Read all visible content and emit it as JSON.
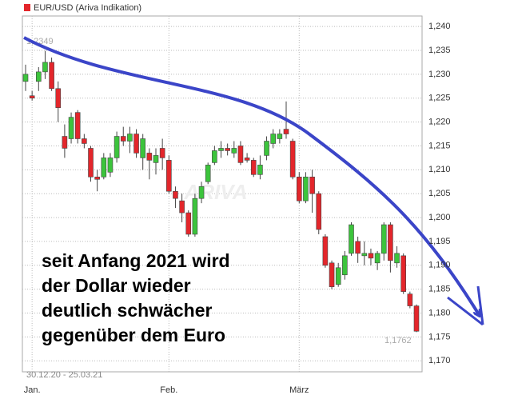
{
  "chart_data": {
    "type": "candlestick",
    "title": "EUR/USD (Ariva Indikation)",
    "range_label": "30.12.20 - 25.03.21",
    "high_label": "1,2349",
    "last_label": "1,1762",
    "watermark": "ARIVA",
    "annotation_lines": [
      "seit Anfang 2021 wird",
      "der Dollar wieder",
      "deutlich schwächer",
      "gegenüber dem Euro"
    ],
    "categories": [
      null,
      "Jan.",
      null,
      null,
      null,
      null,
      null,
      null,
      null,
      null,
      null,
      null,
      null,
      null,
      null,
      null,
      null,
      null,
      null,
      null,
      null,
      null,
      "Feb.",
      null,
      null,
      null,
      null,
      null,
      null,
      null,
      null,
      null,
      null,
      null,
      null,
      null,
      null,
      null,
      null,
      null,
      null,
      null,
      "März",
      null,
      null,
      null,
      null,
      null,
      null,
      null,
      null,
      null,
      null,
      null,
      null,
      null,
      null,
      null,
      null,
      null,
      null
    ],
    "series": [
      {
        "name": "EUR/USD (Ariva Indikation)",
        "color": "#e3262b",
        "up_color": "#3cc43c",
        "open": [
          1.2285,
          1.2255,
          1.2285,
          1.2305,
          1.2325,
          1.227,
          1.217,
          1.2165,
          1.222,
          1.2165,
          1.2145,
          1.2085,
          1.2085,
          1.2095,
          1.2125,
          1.217,
          1.216,
          1.2175,
          1.2125,
          1.2135,
          1.2115,
          1.2145,
          1.212,
          1.2055,
          1.2035,
          1.201,
          1.1965,
          1.204,
          1.2075,
          1.2115,
          1.214,
          1.2145,
          1.2135,
          1.215,
          1.2125,
          1.212,
          1.209,
          1.213,
          1.2155,
          1.2165,
          1.2185,
          1.216,
          1.2085,
          1.2035,
          1.2085,
          1.205,
          1.196,
          1.1905,
          1.186,
          1.188,
          1.1925,
          1.195,
          1.192,
          1.1925,
          1.1905,
          1.1925,
          1.1985,
          1.1905,
          1.192,
          1.184,
          1.1815
        ],
        "high": [
          1.232,
          1.2265,
          1.2315,
          1.2349,
          1.2335,
          1.2285,
          1.2195,
          1.222,
          1.2225,
          1.2175,
          1.215,
          1.21,
          1.2135,
          1.2135,
          1.218,
          1.219,
          1.219,
          1.2185,
          1.2175,
          1.2145,
          1.2145,
          1.2165,
          1.213,
          1.2065,
          1.205,
          1.2015,
          1.205,
          1.2075,
          1.2115,
          1.215,
          1.216,
          1.2155,
          1.216,
          1.216,
          1.2135,
          1.2125,
          1.213,
          1.217,
          1.2185,
          1.2185,
          1.2243,
          1.2165,
          1.2095,
          1.2095,
          1.21,
          1.2055,
          1.1965,
          1.191,
          1.1905,
          1.193,
          1.199,
          1.196,
          1.195,
          1.1935,
          1.193,
          1.199,
          1.199,
          1.194,
          1.1925,
          1.1845,
          1.1818
        ],
        "low": [
          1.2265,
          1.2245,
          1.2265,
          1.229,
          1.2265,
          1.22,
          1.2125,
          1.2155,
          1.2155,
          1.2145,
          1.2075,
          1.2055,
          1.208,
          1.2085,
          1.2115,
          1.215,
          1.2135,
          1.2125,
          1.21,
          1.208,
          1.209,
          1.21,
          1.205,
          1.202,
          1.199,
          1.196,
          1.196,
          1.203,
          1.207,
          1.211,
          1.2125,
          1.213,
          1.2125,
          1.211,
          1.2115,
          1.2085,
          1.208,
          1.212,
          1.2145,
          1.2155,
          1.2165,
          1.208,
          1.203,
          1.203,
          1.201,
          1.1965,
          1.1895,
          1.185,
          1.1855,
          1.187,
          1.192,
          1.1905,
          1.19,
          1.19,
          1.189,
          1.191,
          1.1885,
          1.1895,
          1.184,
          1.181,
          1.176
        ],
        "close": [
          1.23,
          1.225,
          1.2305,
          1.2325,
          1.227,
          1.223,
          1.2145,
          1.221,
          1.2165,
          1.2155,
          1.2085,
          1.208,
          1.2125,
          1.2125,
          1.217,
          1.216,
          1.2175,
          1.2135,
          1.2165,
          1.212,
          1.213,
          1.2125,
          1.2055,
          1.204,
          1.201,
          1.1965,
          1.204,
          1.2065,
          1.211,
          1.214,
          1.2145,
          1.214,
          1.2145,
          1.2115,
          1.212,
          1.209,
          1.211,
          1.216,
          1.2175,
          1.2175,
          1.2175,
          1.2085,
          1.2035,
          1.2085,
          1.205,
          1.1975,
          1.19,
          1.1855,
          1.1895,
          1.192,
          1.1985,
          1.1925,
          1.1925,
          1.1915,
          1.1925,
          1.1985,
          1.191,
          1.1925,
          1.1845,
          1.1815,
          1.1762
        ]
      }
    ],
    "ylim": [
      1.1677,
      1.2422
    ],
    "yticks": [
      {
        "value": 1.17,
        "label": "1,170"
      },
      {
        "value": 1.175,
        "label": "1,175"
      },
      {
        "value": 1.18,
        "label": "1,180"
      },
      {
        "value": 1.185,
        "label": "1,185"
      },
      {
        "value": 1.19,
        "label": "1,190"
      },
      {
        "value": 1.195,
        "label": "1,195"
      },
      {
        "value": 1.2,
        "label": "1,200"
      },
      {
        "value": 1.205,
        "label": "1,205"
      },
      {
        "value": 1.21,
        "label": "1,210"
      },
      {
        "value": 1.215,
        "label": "1,215"
      },
      {
        "value": 1.22,
        "label": "1,220"
      },
      {
        "value": 1.225,
        "label": "1,225"
      },
      {
        "value": 1.23,
        "label": "1,230"
      },
      {
        "value": 1.235,
        "label": "1,235"
      },
      {
        "value": 1.24,
        "label": "1,240"
      }
    ],
    "grid": true
  }
}
